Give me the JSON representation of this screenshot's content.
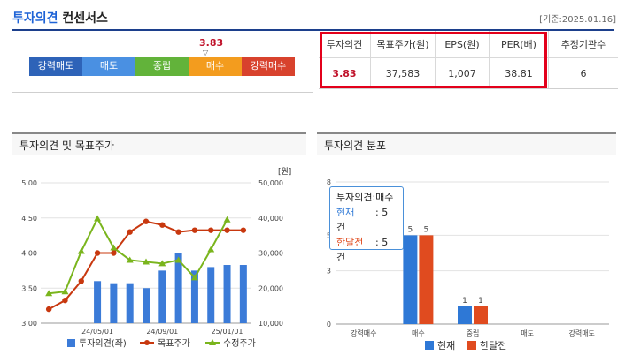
{
  "header": {
    "title_main": "투자의견",
    "title_sub": "컨센서스",
    "date": "[기준:2025.01.16]"
  },
  "scale": {
    "marker_value": "3.83",
    "marker_arrow": "▽",
    "segments": [
      {
        "label": "강력매도",
        "color": "#2e63b8"
      },
      {
        "label": "매도",
        "color": "#4a90e2"
      },
      {
        "label": "중립",
        "color": "#62b33a"
      },
      {
        "label": "매수",
        "color": "#f39c1e"
      },
      {
        "label": "강력매수",
        "color": "#d8422d"
      }
    ]
  },
  "consensus_table": {
    "headers": [
      "투자의견",
      "목표주가(원)",
      "EPS(원)",
      "PER(배)",
      "추정기관수"
    ],
    "values": [
      "3.83",
      "37,583",
      "1,007",
      "38.81",
      "6"
    ]
  },
  "left_panel": {
    "title": "투자의견 및 목표주가",
    "right_unit": "[원]",
    "legend": [
      "투자의견(좌)",
      "목표주가",
      "수정주가"
    ]
  },
  "right_panel": {
    "title": "투자의견 분포",
    "legend": [
      "현재",
      "한달전"
    ],
    "tooltip": {
      "title": "투자의견:매수",
      "rows": [
        {
          "label": "현재",
          "value": ": 5 건"
        },
        {
          "label": "한달전",
          "value": ": 5 건"
        }
      ]
    }
  },
  "chart_data": [
    {
      "type": "bar",
      "title": "투자의견 및 목표주가",
      "ylabel": "",
      "y2label": "[원]",
      "ylim": [
        3.0,
        5.0
      ],
      "y2lim": [
        10000,
        50000
      ],
      "x_tick_labels": [
        "24/05/01",
        "24/09/01",
        "25/01/01"
      ],
      "y_ticks": [
        "3.00",
        "3.50",
        "4.00",
        "4.50",
        "5.00"
      ],
      "y2_ticks": [
        "10,000",
        "20,000",
        "30,000",
        "40,000",
        "50,000"
      ],
      "series": [
        {
          "name": "투자의견(좌)",
          "kind": "bar",
          "color": "#3b7bd8",
          "values": [
            null,
            null,
            null,
            3.6,
            3.57,
            3.57,
            3.5,
            3.75,
            4.0,
            3.75,
            3.8,
            3.83,
            3.83
          ]
        },
        {
          "name": "목표주가",
          "kind": "line",
          "color": "#c8380f",
          "values": [
            14000,
            16500,
            22000,
            30000,
            30000,
            36000,
            39000,
            38000,
            36000,
            36500,
            36500,
            36500,
            36500
          ]
        },
        {
          "name": "수정주가",
          "kind": "line",
          "color": "#7ab51d",
          "values": [
            18500,
            19000,
            30500,
            39800,
            31500,
            28000,
            27500,
            27000,
            28000,
            23000,
            31000,
            39500
          ]
        }
      ]
    },
    {
      "type": "bar",
      "title": "투자의견 분포",
      "categories": [
        "강력매수",
        "매수",
        "중립",
        "매도",
        "강력매도"
      ],
      "ylim": [
        0,
        8
      ],
      "y_ticks": [
        "0",
        "3",
        "5",
        "8"
      ],
      "series": [
        {
          "name": "현재",
          "color": "#2e78d6",
          "values": [
            0,
            5,
            1,
            0,
            0
          ]
        },
        {
          "name": "한달전",
          "color": "#e04b1f",
          "values": [
            0,
            5,
            1,
            0,
            0
          ]
        }
      ]
    }
  ]
}
